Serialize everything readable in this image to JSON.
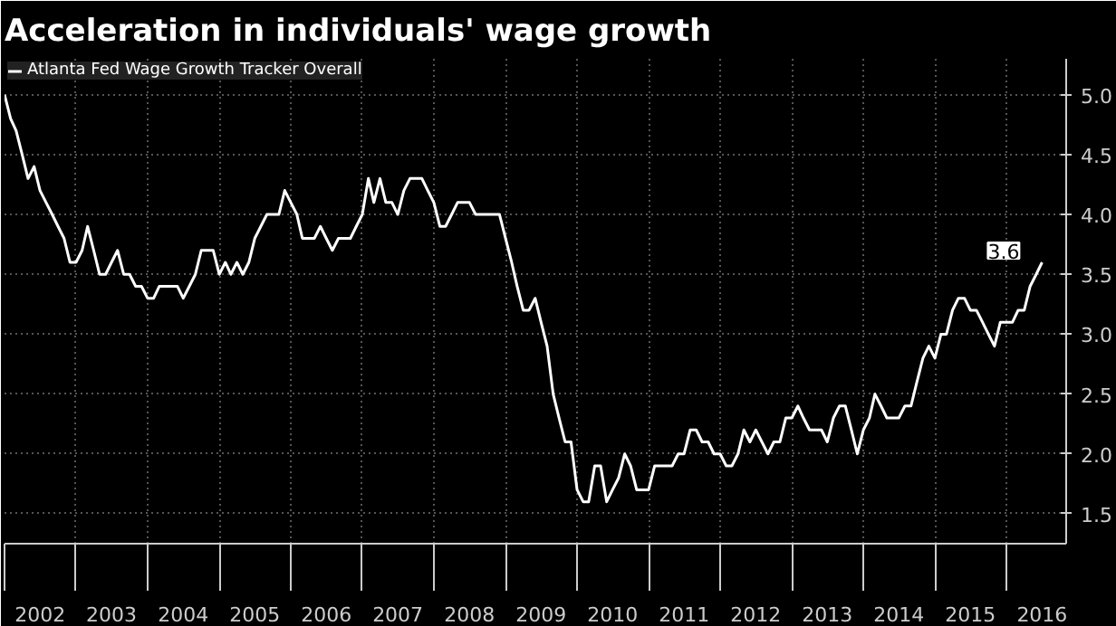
{
  "chart_data": {
    "type": "line",
    "title": "Acceleration in individuals' wage growth",
    "x": [
      "2002-01",
      "2002-02",
      "2002-03",
      "2002-04",
      "2002-05",
      "2002-06",
      "2002-07",
      "2002-08",
      "2002-09",
      "2002-10",
      "2002-11",
      "2002-12",
      "2003-01",
      "2003-02",
      "2003-03",
      "2003-04",
      "2003-05",
      "2003-06",
      "2003-07",
      "2003-08",
      "2003-09",
      "2003-10",
      "2003-11",
      "2003-12",
      "2004-01",
      "2004-02",
      "2004-03",
      "2004-04",
      "2004-05",
      "2004-06",
      "2004-07",
      "2004-08",
      "2004-09",
      "2004-10",
      "2004-11",
      "2004-12",
      "2005-01",
      "2005-02",
      "2005-03",
      "2005-04",
      "2005-05",
      "2005-06",
      "2005-07",
      "2005-08",
      "2005-09",
      "2005-10",
      "2005-11",
      "2005-12",
      "2006-01",
      "2006-02",
      "2006-03",
      "2006-04",
      "2006-05",
      "2006-06",
      "2006-07",
      "2006-08",
      "2006-09",
      "2006-10",
      "2006-11",
      "2006-12",
      "2007-01",
      "2007-02",
      "2007-03",
      "2007-04",
      "2007-05",
      "2007-06",
      "2007-07",
      "2007-08",
      "2007-09",
      "2007-10",
      "2007-11",
      "2007-12",
      "2008-01",
      "2008-02",
      "2008-03",
      "2008-04",
      "2008-05",
      "2008-06",
      "2008-07",
      "2008-08",
      "2008-09",
      "2008-10",
      "2008-11",
      "2008-12",
      "2009-01",
      "2009-02",
      "2009-03",
      "2009-04",
      "2009-05",
      "2009-06",
      "2009-07",
      "2009-08",
      "2009-09",
      "2009-10",
      "2009-11",
      "2009-12",
      "2010-01",
      "2010-02",
      "2010-03",
      "2010-04",
      "2010-05",
      "2010-06",
      "2010-07",
      "2010-08",
      "2010-09",
      "2010-10",
      "2010-11",
      "2010-12",
      "2011-01",
      "2011-02",
      "2011-03",
      "2011-04",
      "2011-05",
      "2011-06",
      "2011-07",
      "2011-08",
      "2011-09",
      "2011-10",
      "2011-11",
      "2011-12",
      "2012-01",
      "2012-02",
      "2012-03",
      "2012-04",
      "2012-05",
      "2012-06",
      "2012-07",
      "2012-08",
      "2012-09",
      "2012-10",
      "2012-11",
      "2012-12",
      "2013-01",
      "2013-02",
      "2013-03",
      "2013-04",
      "2013-05",
      "2013-06",
      "2013-07",
      "2013-08",
      "2013-09",
      "2013-10",
      "2013-11",
      "2013-12",
      "2014-01",
      "2014-02",
      "2014-03",
      "2014-04",
      "2014-05",
      "2014-06",
      "2014-07",
      "2014-08",
      "2014-09",
      "2014-10",
      "2014-11",
      "2014-12",
      "2015-01",
      "2015-02",
      "2015-03",
      "2015-04",
      "2015-05",
      "2015-06",
      "2015-07",
      "2015-08",
      "2015-09",
      "2015-10",
      "2015-11",
      "2015-12",
      "2016-01",
      "2016-02",
      "2016-03",
      "2016-04",
      "2016-05",
      "2016-06",
      "2016-07"
    ],
    "series": [
      {
        "name": "Atlanta Fed Wage Growth Tracker Overall",
        "color": "#ffffff",
        "values": [
          5.0,
          4.8,
          4.7,
          4.5,
          4.3,
          4.4,
          4.2,
          4.1,
          4.0,
          3.9,
          3.8,
          3.6,
          3.6,
          3.7,
          3.9,
          3.7,
          3.5,
          3.5,
          3.6,
          3.7,
          3.5,
          3.5,
          3.4,
          3.4,
          3.3,
          3.3,
          3.4,
          3.4,
          3.4,
          3.4,
          3.3,
          3.4,
          3.5,
          3.7,
          3.7,
          3.7,
          3.5,
          3.6,
          3.5,
          3.6,
          3.5,
          3.6,
          3.8,
          3.9,
          4.0,
          4.0,
          4.0,
          4.2,
          4.1,
          4.0,
          3.8,
          3.8,
          3.8,
          3.9,
          3.8,
          3.7,
          3.8,
          3.8,
          3.8,
          3.9,
          4.0,
          4.3,
          4.1,
          4.3,
          4.1,
          4.1,
          4.0,
          4.2,
          4.3,
          4.3,
          4.3,
          4.2,
          4.1,
          3.9,
          3.9,
          4.0,
          4.1,
          4.1,
          4.1,
          4.0,
          4.0,
          4.0,
          4.0,
          4.0,
          3.8,
          3.6,
          3.4,
          3.2,
          3.2,
          3.3,
          3.1,
          2.9,
          2.5,
          2.3,
          2.1,
          2.1,
          1.7,
          1.6,
          1.6,
          1.9,
          1.9,
          1.6,
          1.7,
          1.8,
          2.0,
          1.9,
          1.7,
          1.7,
          1.7,
          1.9,
          1.9,
          1.9,
          1.9,
          2.0,
          2.0,
          2.2,
          2.2,
          2.1,
          2.1,
          2.0,
          2.0,
          1.9,
          1.9,
          2.0,
          2.2,
          2.1,
          2.2,
          2.1,
          2.0,
          2.1,
          2.1,
          2.3,
          2.3,
          2.4,
          2.3,
          2.2,
          2.2,
          2.2,
          2.1,
          2.3,
          2.4,
          2.4,
          2.2,
          2.0,
          2.2,
          2.3,
          2.5,
          2.4,
          2.3,
          2.3,
          2.3,
          2.4,
          2.4,
          2.6,
          2.8,
          2.9,
          2.8,
          3.0,
          3.0,
          3.2,
          3.3,
          3.3,
          3.2,
          3.2,
          3.1,
          3.0,
          2.9,
          3.1,
          3.1,
          3.1,
          3.2,
          3.2,
          3.4,
          3.5,
          3.6
        ]
      }
    ],
    "annotations": [
      {
        "text": "3.6",
        "x": "2016-07",
        "y": 3.6
      }
    ],
    "xlim": [
      "2002-01",
      "2016-11"
    ],
    "ylim": [
      1.25,
      5.3
    ],
    "yticks": [
      1.5,
      {
        "value": 2,
        "label": "2.0"
      },
      2.5,
      {
        "value": 3,
        "label": "3.0"
      },
      3.5,
      {
        "value": 4,
        "label": "4.0"
      },
      4.5,
      {
        "value": 5,
        "label": "5.0"
      }
    ],
    "xticks": [
      {
        "value": "2002-01",
        "label": null
      },
      {
        "value": "2002-07",
        "label": "2002"
      },
      {
        "value": "2003-01",
        "label": null
      },
      {
        "value": "2003-07",
        "label": "2003"
      },
      {
        "value": "2004-01",
        "label": null
      },
      {
        "value": "2004-07",
        "label": "2004"
      },
      {
        "value": "2005-01",
        "label": null
      },
      {
        "value": "2005-07",
        "label": "2005"
      },
      {
        "value": "2006-01",
        "label": null
      },
      {
        "value": "2006-07",
        "label": "2006"
      },
      {
        "value": "2007-01",
        "label": null
      },
      {
        "value": "2007-07",
        "label": "2007"
      },
      {
        "value": "2008-01",
        "label": null
      },
      {
        "value": "2008-07",
        "label": "2008"
      },
      {
        "value": "2009-01",
        "label": null
      },
      {
        "value": "2009-07",
        "label": "2009"
      },
      {
        "value": "2010-01",
        "label": null
      },
      {
        "value": "2010-07",
        "label": "2010"
      },
      {
        "value": "2011-01",
        "label": null
      },
      {
        "value": "2011-07",
        "label": "2011"
      },
      {
        "value": "2012-01",
        "label": null
      },
      {
        "value": "2012-07",
        "label": "2012"
      },
      {
        "value": "2013-01",
        "label": null
      },
      {
        "value": "2013-07",
        "label": "2013"
      },
      {
        "value": "2014-01",
        "label": null
      },
      {
        "value": "2014-07",
        "label": "2014"
      },
      {
        "value": "2015-01",
        "label": null
      },
      {
        "value": "2015-07",
        "label": "2015"
      },
      {
        "value": "2016-01",
        "label": null
      },
      {
        "value": "2016-07",
        "label": "2016"
      }
    ],
    "grid": true,
    "legend": "top left"
  }
}
